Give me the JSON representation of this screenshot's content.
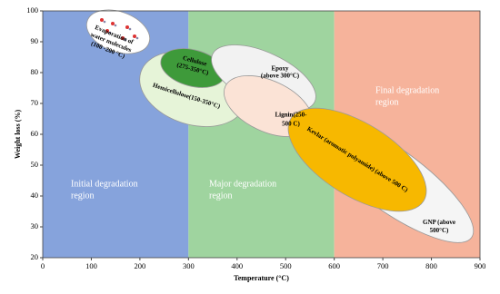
{
  "chart_data": {
    "type": "region",
    "x_label": "Temperature (°C)",
    "y_label": "Weight loss (%)",
    "xlim": [
      0,
      900
    ],
    "ylim": [
      20,
      100
    ],
    "xticks": [
      0,
      100,
      200,
      300,
      400,
      500,
      600,
      700,
      800,
      900
    ],
    "yticks": [
      20,
      30,
      40,
      50,
      60,
      70,
      80,
      90,
      100
    ],
    "regions": [
      {
        "lines": [
          "Initial degradation",
          "region"
        ],
        "start": 0,
        "end": 300,
        "color": "#86a3dc"
      },
      {
        "lines": [
          "Major degradation",
          "region"
        ],
        "start": 300,
        "end": 600,
        "color": "#9fd49f"
      },
      {
        "lines": [
          "Final degradation",
          "region"
        ],
        "start": 600,
        "end": 900,
        "color": "#f6b39b"
      }
    ],
    "annotations": [
      {
        "lines": [
          "Evaporation of",
          "water molecules",
          "(100 -200 °C)"
        ],
        "color": "#ffffff"
      },
      {
        "lines": [
          "Hemicellulose(150-350°C)"
        ],
        "color": "#e6f4d8"
      },
      {
        "lines": [
          "Cellulose",
          "(275-350°C)"
        ],
        "color": "#3e9a3a"
      },
      {
        "lines": [
          "Epoxy",
          "(above 300°C)"
        ],
        "color": "#f2f2f2"
      },
      {
        "lines": [
          "Lignin(250-",
          "500 C)"
        ],
        "color": "#fbe3d6"
      },
      {
        "lines": [
          "GNP (above",
          "500°C)"
        ],
        "color": "#f5f5f5"
      },
      {
        "lines": [
          "Kevlar (aromatic polyamide) (above 500 C)"
        ],
        "color": "#f7b800"
      }
    ]
  }
}
